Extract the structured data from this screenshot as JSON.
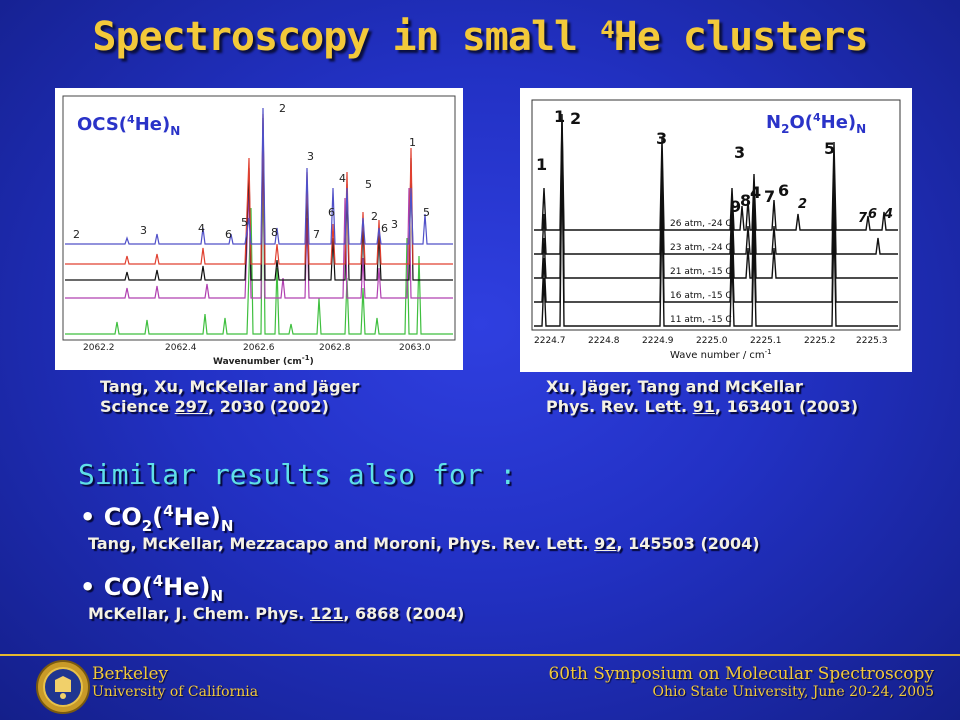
{
  "title": {
    "main": "Spectroscopy in small ",
    "sup": "4",
    "rest": "He clusters"
  },
  "left_panel": {
    "label_a": "OCS(",
    "label_sup": "4",
    "label_b": "He)",
    "label_sub": "N",
    "peak_labels": [
      "2",
      "3",
      "4",
      "6",
      "5",
      "8",
      "2",
      "3",
      "7",
      "6",
      "4",
      "5",
      "2",
      "6",
      "3",
      "5",
      "1"
    ],
    "ticks": [
      "2062.2",
      "2062.4",
      "2062.6",
      "2062.8",
      "2063.0"
    ],
    "xlabel": "Wavenumber (cm",
    "xlabel_sup": "-1",
    "xlabel_end": ")"
  },
  "right_panel": {
    "label_a": "N",
    "label_sub1": "2",
    "label_b": "O(",
    "label_sup": "4",
    "label_c": "He)",
    "label_sub2": "N",
    "peak_labels": [
      "1",
      "2",
      "1",
      "3",
      "4",
      "9",
      "8",
      "7",
      "6",
      "2",
      "3",
      "5",
      "7",
      "6",
      "4"
    ],
    "trace_labels": [
      "26 atm, -24 C",
      "23 atm, -24 C",
      "21 atm, -15 C",
      "16 atm, -15 C",
      "11 atm, -15 C"
    ],
    "ticks": [
      "2224.7",
      "2224.8",
      "2224.9",
      "2225.0",
      "2225.1",
      "2225.2",
      "2225.3"
    ],
    "xlabel": "Wave number / cm",
    "xlabel_sup": "-1"
  },
  "cite_left": {
    "line1": "Tang, Xu, McKellar and Jäger",
    "line2a": "Science ",
    "vol": "297",
    "line2b": ", 2030 (2002)"
  },
  "cite_right": {
    "line1": "Xu, Jäger, Tang and McKellar",
    "line2a": "Phys. Rev. Lett. ",
    "vol": "91",
    "line2b": ", 163401 (2003)"
  },
  "similar": "Similar results also for :",
  "item1": {
    "bullet": "•",
    "a": "CO",
    "sub1": "2",
    "b": "(",
    "sup": "4",
    "c": "He)",
    "sub2": "N",
    "ref_a": "Tang, McKellar, Mezzacapo and Moroni, Phys. Rev. Lett. ",
    "vol": "92",
    "ref_b": ", 145503 (2004)"
  },
  "item2": {
    "bullet": "•",
    "a": "CO(",
    "sup": "4",
    "b": "He)",
    "sub": "N",
    "ref_a": "McKellar, J. Chem. Phys. ",
    "vol": "121",
    "ref_b": ", 6868 (2004)"
  },
  "footer": {
    "left1": "Berkeley",
    "left2": "University of California",
    "right1": "60th Symposium on Molecular Spectroscopy",
    "right2": "Ohio State University, June 20-24, 2005"
  },
  "colors": {
    "title": "#f3c93a",
    "similar": "#5fe0e8",
    "footer": "#f1c93b"
  }
}
